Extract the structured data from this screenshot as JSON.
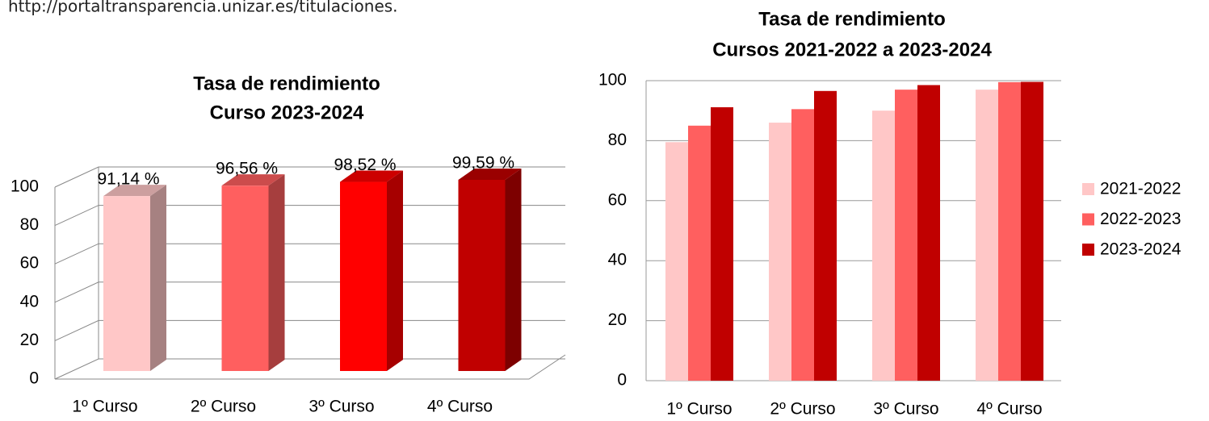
{
  "url": "http://portaltransparencia.unizar.es/titulaciones.",
  "chart_data": [
    {
      "type": "bar3d",
      "title": [
        "Tasa de rendimiento",
        "Curso 2023-2024"
      ],
      "categories": [
        "1º Curso",
        "2º Curso",
        "3º Curso",
        "4º Curso"
      ],
      "values": [
        91.14,
        96.56,
        98.52,
        99.59
      ],
      "value_labels": [
        "91,14 %",
        "96,56 %",
        "98,52 %",
        "99,59 %"
      ],
      "colors": [
        "#ffc7c7",
        "#ff5f5f",
        "#ff0000",
        "#c00000"
      ],
      "ylim": [
        0,
        100
      ],
      "yticks": [
        0,
        20,
        40,
        60,
        80,
        100
      ],
      "grid": true
    },
    {
      "type": "grouped_bar",
      "title": [
        "Tasa de rendimiento",
        "Cursos 2021-2022 a 2023-2024"
      ],
      "categories": [
        "1º Curso",
        "2º Curso",
        "3º Curso",
        "4º Curso"
      ],
      "series": [
        {
          "name": "2021-2022",
          "color": "#ffc7c7",
          "values": [
            79.5,
            86,
            90,
            97
          ]
        },
        {
          "name": "2022-2023",
          "color": "#ff5f5f",
          "values": [
            85,
            90.5,
            97,
            99.5
          ]
        },
        {
          "name": "2023-2024",
          "color": "#c00000",
          "values": [
            91.14,
            96.56,
            98.52,
            99.59
          ]
        }
      ],
      "ylim": [
        0,
        100
      ],
      "yticks": [
        0,
        20,
        40,
        60,
        80,
        100
      ],
      "grid": true,
      "legend": "right"
    }
  ]
}
